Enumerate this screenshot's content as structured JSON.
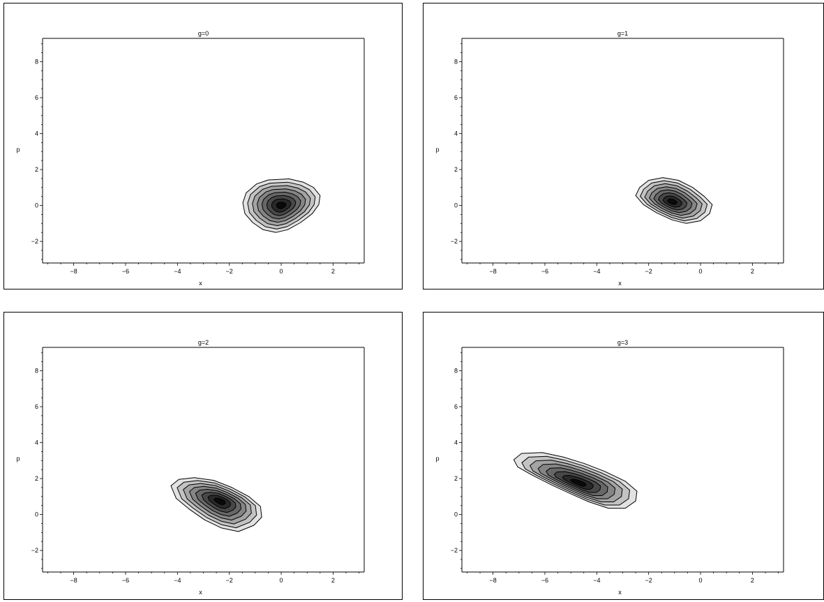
{
  "chart_data": [
    {
      "type": "contour",
      "title": "g=0",
      "xlabel": "x",
      "ylabel": "p",
      "xlim": [
        -9.2,
        3.2
      ],
      "ylim": [
        -3.2,
        9.3
      ],
      "xticks": [
        -8,
        -6,
        -4,
        -2,
        0,
        2
      ],
      "yticks": [
        -2,
        0,
        2,
        4,
        6,
        8
      ],
      "fill": "grayscale, darker toward peak",
      "center": [
        0.0,
        0.0
      ],
      "level_count": 8,
      "outer_contour": [
        [
          -0.1,
          1.45
        ],
        [
          0.3,
          1.48
        ],
        [
          0.85,
          1.3
        ],
        [
          1.25,
          1.0
        ],
        [
          1.5,
          0.55
        ],
        [
          1.45,
          0.05
        ],
        [
          1.2,
          -0.45
        ],
        [
          0.75,
          -0.95
        ],
        [
          0.25,
          -1.35
        ],
        [
          -0.2,
          -1.5
        ],
        [
          -0.7,
          -1.35
        ],
        [
          -1.1,
          -0.95
        ],
        [
          -1.4,
          -0.45
        ],
        [
          -1.48,
          0.15
        ],
        [
          -1.35,
          0.7
        ],
        [
          -0.95,
          1.2
        ],
        [
          -0.5,
          1.42
        ]
      ]
    },
    {
      "type": "contour",
      "title": "g=1",
      "xlabel": "x",
      "ylabel": "p",
      "xlim": [
        -9.2,
        3.2
      ],
      "ylim": [
        -3.2,
        9.3
      ],
      "xticks": [
        -8,
        -6,
        -4,
        -2,
        0,
        2
      ],
      "yticks": [
        -2,
        0,
        2,
        4,
        6,
        8
      ],
      "fill": "grayscale, darker toward peak",
      "center": [
        -1.1,
        0.2
      ],
      "level_count": 8,
      "outer_contour": [
        [
          -2.35,
          1.0
        ],
        [
          -2.0,
          1.4
        ],
        [
          -1.45,
          1.55
        ],
        [
          -0.85,
          1.4
        ],
        [
          -0.3,
          1.0
        ],
        [
          0.15,
          0.5
        ],
        [
          0.45,
          0.05
        ],
        [
          0.35,
          -0.45
        ],
        [
          0.0,
          -0.85
        ],
        [
          -0.55,
          -1.0
        ],
        [
          -1.1,
          -0.8
        ],
        [
          -1.7,
          -0.4
        ],
        [
          -2.2,
          0.05
        ],
        [
          -2.5,
          0.55
        ]
      ]
    },
    {
      "type": "contour",
      "title": "g=2",
      "xlabel": "x",
      "ylabel": "p",
      "xlim": [
        -9.2,
        3.2
      ],
      "ylim": [
        -3.2,
        9.3
      ],
      "xticks": [
        -8,
        -6,
        -4,
        -2,
        0,
        2
      ],
      "yticks": [
        -2,
        0,
        2,
        4,
        6,
        8
      ],
      "fill": "grayscale, darker toward peak",
      "center": [
        -2.35,
        0.75
      ],
      "level_count": 8,
      "outer_contour": [
        [
          -4.25,
          1.6
        ],
        [
          -3.95,
          1.95
        ],
        [
          -3.35,
          2.05
        ],
        [
          -2.6,
          1.9
        ],
        [
          -1.9,
          1.5
        ],
        [
          -1.25,
          1.0
        ],
        [
          -0.8,
          0.45
        ],
        [
          -0.75,
          -0.15
        ],
        [
          -1.05,
          -0.6
        ],
        [
          -1.65,
          -0.95
        ],
        [
          -2.3,
          -0.75
        ],
        [
          -2.95,
          -0.3
        ],
        [
          -3.55,
          0.3
        ],
        [
          -4.05,
          0.9
        ]
      ]
    },
    {
      "type": "contour",
      "title": "g=3",
      "xlabel": "x",
      "ylabel": "p",
      "xlim": [
        -9.2,
        3.2
      ],
      "ylim": [
        -3.2,
        9.3
      ],
      "xticks": [
        -8,
        -6,
        -4,
        -2,
        0,
        2
      ],
      "yticks": [
        -2,
        0,
        2,
        4,
        6,
        8
      ],
      "fill": "grayscale, darker toward peak",
      "center": [
        -4.7,
        1.75
      ],
      "level_count": 8,
      "outer_contour": [
        [
          -7.2,
          3.05
        ],
        [
          -6.9,
          3.4
        ],
        [
          -6.1,
          3.45
        ],
        [
          -5.3,
          3.2
        ],
        [
          -4.5,
          2.85
        ],
        [
          -3.7,
          2.4
        ],
        [
          -2.9,
          1.85
        ],
        [
          -2.45,
          1.3
        ],
        [
          -2.5,
          0.75
        ],
        [
          -2.9,
          0.35
        ],
        [
          -3.55,
          0.35
        ],
        [
          -4.3,
          0.7
        ],
        [
          -5.0,
          1.15
        ],
        [
          -5.75,
          1.65
        ],
        [
          -6.5,
          2.2
        ],
        [
          -7.05,
          2.65
        ]
      ]
    }
  ]
}
